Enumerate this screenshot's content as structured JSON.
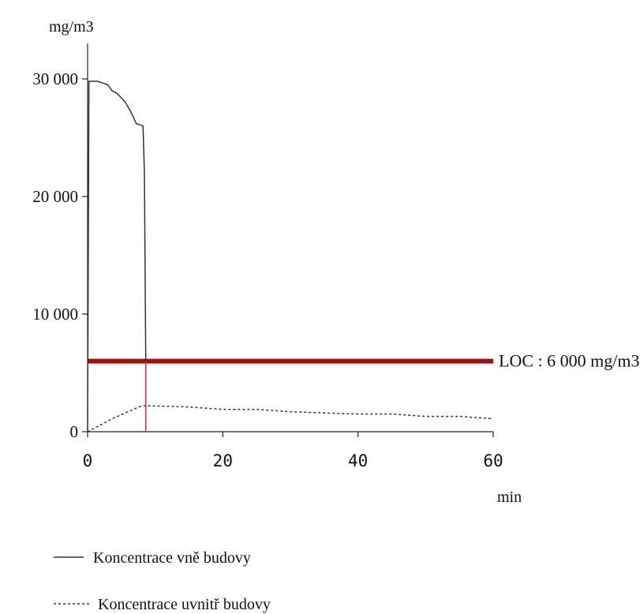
{
  "chart_data": {
    "type": "line",
    "ylabel": "mg/m3",
    "xlabel": "min",
    "xlim": [
      0,
      60
    ],
    "ylim": [
      0,
      30000
    ],
    "x_ticks": [
      0,
      20,
      40,
      60
    ],
    "y_ticks": [
      0,
      10000,
      20000,
      30000
    ],
    "x_tick_labels": [
      "0",
      "20",
      "40",
      "60"
    ],
    "y_tick_labels": [
      "0",
      "10 000",
      "20 000",
      "30 000"
    ],
    "grid": false,
    "series": [
      {
        "name": "Koncentrace vně budovy",
        "style": "solid",
        "color": "#333333",
        "x": [
          0,
          0.2,
          1.5,
          3,
          3.6,
          4.3,
          5.5,
          6.4,
          7.2,
          8.2,
          8.4,
          8.6,
          8.6
        ],
        "y": [
          0,
          29800,
          29800,
          29500,
          29000,
          28800,
          28100,
          27200,
          26200,
          26000,
          22000,
          6000,
          0
        ]
      },
      {
        "name": "Koncentrace uvnitř budovy",
        "style": "dashed",
        "color": "#333333",
        "x": [
          0,
          4,
          8,
          9,
          15,
          20,
          25,
          30,
          35,
          40,
          45,
          50,
          55,
          60
        ],
        "y": [
          0,
          1200,
          2200,
          2200,
          2100,
          1900,
          1900,
          1700,
          1600,
          1500,
          1500,
          1300,
          1300,
          1100
        ]
      }
    ],
    "reference_line": {
      "label": "LOC : 6 000 mg/m3",
      "y": 6000,
      "color": "#a01010"
    },
    "legend": {
      "placement": "bottom-left",
      "entries": [
        {
          "label": "Koncentrace vně budovy",
          "style": "solid"
        },
        {
          "label": "Koncentrace uvnitř budovy",
          "style": "dashed"
        }
      ]
    }
  }
}
